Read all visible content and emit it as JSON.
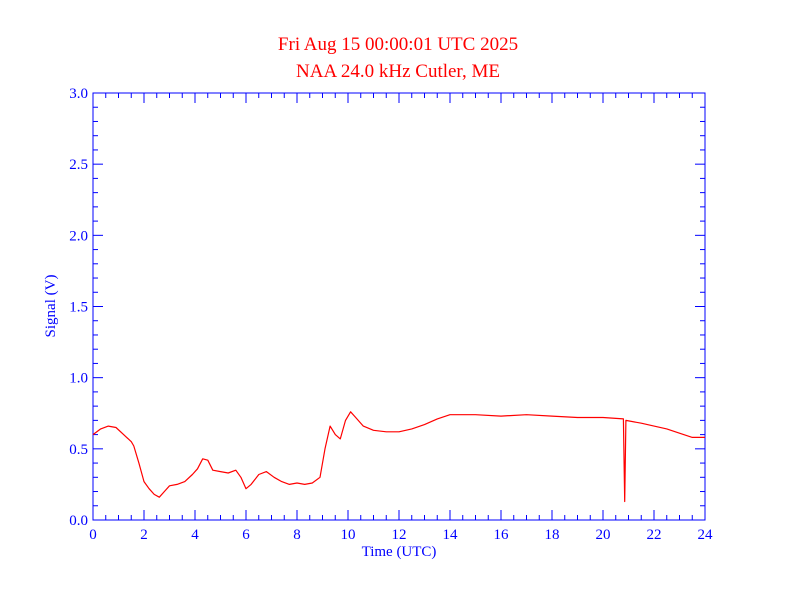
{
  "chart_data": {
    "type": "line",
    "title": "Fri Aug 15 00:00:01 UTC 2025",
    "subtitle": "NAA 24.0 kHz Cutler, ME",
    "xlabel": "Time (UTC)",
    "ylabel": "Signal (V)",
    "xlim": [
      0,
      24
    ],
    "ylim": [
      0,
      3.0
    ],
    "x_ticks": [
      0,
      2,
      4,
      6,
      8,
      10,
      12,
      14,
      16,
      18,
      20,
      22,
      24
    ],
    "y_ticks": [
      0.0,
      0.5,
      1.0,
      1.5,
      2.0,
      2.5,
      3.0
    ],
    "x_tick_labels": [
      "0",
      "2",
      "4",
      "6",
      "8",
      "10",
      "12",
      "14",
      "16",
      "18",
      "20",
      "22",
      "24"
    ],
    "y_tick_labels": [
      "0.0",
      "0.5",
      "1.0",
      "1.5",
      "2.0",
      "2.5",
      "3.0"
    ],
    "grid": false,
    "series": [
      {
        "color": "#ff0000",
        "x": [
          0,
          0.3,
          0.6,
          0.9,
          1.2,
          1.5,
          1.6,
          1.8,
          2.0,
          2.2,
          2.4,
          2.6,
          2.8,
          3.0,
          3.3,
          3.6,
          3.9,
          4.1,
          4.3,
          4.5,
          4.7,
          5.0,
          5.3,
          5.6,
          5.8,
          6.0,
          6.2,
          6.5,
          6.8,
          7.1,
          7.4,
          7.7,
          8.0,
          8.3,
          8.6,
          8.9,
          9.1,
          9.3,
          9.5,
          9.7,
          9.9,
          10.1,
          10.3,
          10.6,
          11.0,
          11.5,
          12.0,
          12.5,
          13.0,
          13.5,
          14.0,
          15.0,
          16.0,
          17.0,
          18.0,
          19.0,
          20.0,
          20.8,
          20.85,
          20.9,
          21.5,
          22.0,
          22.5,
          23.0,
          23.5,
          24.0
        ],
        "y": [
          0.6,
          0.64,
          0.66,
          0.65,
          0.6,
          0.55,
          0.52,
          0.4,
          0.27,
          0.22,
          0.18,
          0.16,
          0.2,
          0.24,
          0.25,
          0.27,
          0.32,
          0.36,
          0.43,
          0.42,
          0.35,
          0.34,
          0.33,
          0.35,
          0.3,
          0.22,
          0.25,
          0.32,
          0.34,
          0.3,
          0.27,
          0.25,
          0.26,
          0.25,
          0.26,
          0.3,
          0.5,
          0.66,
          0.6,
          0.57,
          0.7,
          0.76,
          0.72,
          0.66,
          0.63,
          0.62,
          0.62,
          0.64,
          0.67,
          0.71,
          0.74,
          0.74,
          0.73,
          0.74,
          0.73,
          0.72,
          0.72,
          0.71,
          0.13,
          0.7,
          0.68,
          0.66,
          0.64,
          0.61,
          0.58,
          0.58
        ]
      }
    ]
  }
}
